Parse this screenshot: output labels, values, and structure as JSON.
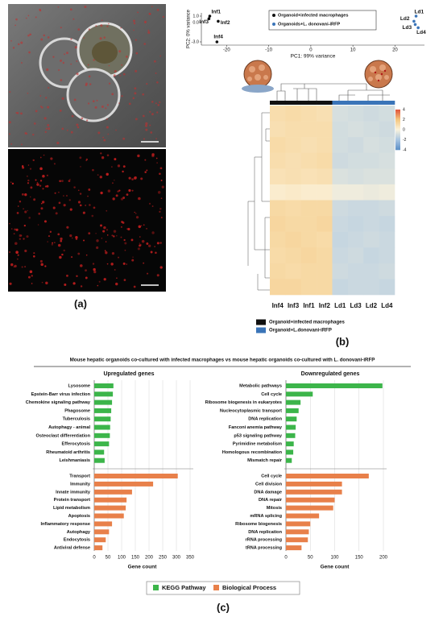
{
  "panel_labels": [
    "(a)",
    "(b)",
    "(c)"
  ],
  "figure_title": "Mouse hepatic organoids co-cultured with infected macrophages vs mouse hepatic organoids co-cultured with L. donovani-iRFP",
  "chart_data": [
    {
      "type": "scatter",
      "xlabel": "PC1: 99% variance",
      "ylabel": "PC2: 0% variance",
      "xlim": [
        -26,
        27
      ],
      "xticks": [
        -20,
        -10,
        0,
        10,
        20
      ],
      "ylim": [
        -3.5,
        1.5
      ],
      "yticks": [
        {
          "value": -3.0,
          "label": "-3.0"
        },
        {
          "value": 0.0,
          "label": "0.0"
        },
        {
          "value": 1.0,
          "label": "1.0"
        }
      ],
      "series": [
        {
          "name": "Organoid+infected macrophages",
          "color": "#111111",
          "x": [
            -24,
            -22,
            -24.2,
            -22.3
          ],
          "values": [
            1.0,
            0.2,
            0.6,
            -3.0
          ],
          "labels": [
            "Inf1",
            "Inf2",
            "Inf3",
            "Inf4"
          ]
        },
        {
          "name": "Organoids+L. donovani-iRFP",
          "color": "#3a74b8",
          "x": [
            25,
            24.5,
            24.8,
            25.5
          ],
          "values": [
            1.0,
            0.2,
            -0.3,
            -0.8
          ],
          "labels": [
            "Ld1",
            "Ld2",
            "Ld3",
            "Ld4"
          ]
        }
      ]
    },
    {
      "type": "heatmap",
      "columns": [
        "Inf4",
        "Inf3",
        "Inf1",
        "Inf2",
        "Ld1",
        "Ld3",
        "Ld2",
        "Ld4"
      ],
      "column_colors": [
        "#111111",
        "#111111",
        "#111111",
        "#111111",
        "#3a74b8",
        "#3a74b8",
        "#3a74b8",
        "#3a74b8"
      ],
      "values": [
        [
          1.0,
          1.1,
          1.0,
          0.9,
          -0.9,
          -1.0,
          -1.1,
          -1.0
        ],
        [
          0.9,
          1.0,
          1.0,
          1.0,
          -1.0,
          -0.9,
          -1.0,
          -1.1
        ],
        [
          1.1,
          1.0,
          0.9,
          1.0,
          -1.0,
          -1.1,
          -0.9,
          -1.0
        ],
        [
          1.0,
          0.9,
          1.0,
          1.1,
          -1.1,
          -1.0,
          -1.0,
          -0.9
        ],
        [
          0.8,
          0.9,
          0.8,
          0.9,
          -0.8,
          -0.9,
          -0.8,
          -0.8
        ],
        [
          0.3,
          0.4,
          0.3,
          0.3,
          -0.3,
          -0.3,
          -0.4,
          -0.3
        ],
        [
          1.2,
          1.1,
          1.2,
          1.2,
          -1.1,
          -1.2,
          -1.2,
          -1.1
        ],
        [
          1.3,
          1.2,
          1.2,
          1.3,
          -1.2,
          -1.3,
          -1.2,
          -1.3
        ],
        [
          1.2,
          1.3,
          1.2,
          1.1,
          -1.3,
          -1.2,
          -1.1,
          -1.2
        ],
        [
          1.1,
          1.2,
          1.3,
          1.2,
          -1.2,
          -1.1,
          -1.3,
          -1.2
        ],
        [
          1.2,
          1.1,
          1.2,
          1.2,
          -1.1,
          -1.2,
          -1.2,
          -1.1
        ],
        [
          1.3,
          1.3,
          1.2,
          1.2,
          -1.3,
          -1.2,
          -1.2,
          -1.3
        ]
      ],
      "colorlim": [
        -4,
        4
      ],
      "colorbar_ticks": [
        4,
        2,
        0,
        -2,
        -4
      ],
      "colorscale": [
        "#5b8fc7",
        "#a9c6e2",
        "#fbf3dc",
        "#f5c77e",
        "#e0523a"
      ],
      "legend": [
        {
          "name": "Organoid+infected macrophages",
          "color": "#111111"
        },
        {
          "name": "Organoid+L.donovani-iRFP",
          "color": "#3a74b8"
        }
      ]
    },
    {
      "type": "barh",
      "title": "Upregulated genes",
      "xlabel": "Gene count",
      "xlim": [
        0,
        350
      ],
      "xticks": [
        0,
        50,
        100,
        150,
        200,
        250,
        300,
        350
      ],
      "categories": [
        "Lysosome",
        "Epstein-Barr virus infection",
        "Chemokine signaling pathway",
        "Phagosome",
        "Tuberculosis",
        "Autophagy - animal",
        "Osteoclast differentiation",
        "Efferocytosis",
        "Rheumatoid arthritis",
        "Leishmaniasis",
        "Transport",
        "Immunity",
        "Innate immunity",
        "Protein transport",
        "Lipid metabolism",
        "Apoptosis",
        "Inflammatory response",
        "Autophagy",
        "Endocytosis",
        "Antiviral defense"
      ],
      "series": [
        {
          "name": "KEGG Pathway",
          "color": "#3cb54a",
          "values": [
            70,
            68,
            65,
            62,
            60,
            58,
            57,
            54,
            36,
            38,
            null,
            null,
            null,
            null,
            null,
            null,
            null,
            null,
            null,
            null
          ]
        },
        {
          "name": "Biological Process",
          "color": "#e8804a",
          "values": [
            null,
            null,
            null,
            null,
            null,
            null,
            null,
            null,
            null,
            null,
            305,
            215,
            138,
            118,
            115,
            108,
            65,
            54,
            42,
            30
          ]
        }
      ]
    },
    {
      "type": "barh",
      "title": "Downregulated genes",
      "xlabel": "Gene count",
      "xlim": [
        0,
        200
      ],
      "xticks": [
        0,
        50,
        100,
        150,
        200
      ],
      "categories": [
        "Metabolic pathways",
        "Cell cycle",
        "Ribosome biogenesis in eukaryotes",
        "Nucleocytoplasmic transport",
        "DNA replication",
        "Fanconi anemia pathway",
        "p53 signaling pathway",
        "Pyrimidine metabolism",
        "Homologous recombination",
        "Mismatch repair",
        "Cell cycle",
        "Cell division",
        "DNA damage",
        "DNA repair",
        "Mitosis",
        "mRNA splicing",
        "Ribosome biogenesis",
        "DNA replication",
        "rRNA processing",
        "tRNA processing"
      ],
      "series": [
        {
          "color": "#3cb54a",
          "values": [
            198,
            55,
            30,
            26,
            22,
            20,
            19,
            16,
            15,
            12,
            null,
            null,
            null,
            null,
            null,
            null,
            null,
            null,
            null,
            null
          ]
        },
        {
          "color": "#e8804a",
          "values": [
            null,
            null,
            null,
            null,
            null,
            null,
            null,
            null,
            null,
            null,
            170,
            115,
            115,
            100,
            97,
            68,
            50,
            47,
            45,
            32
          ]
        }
      ]
    }
  ]
}
